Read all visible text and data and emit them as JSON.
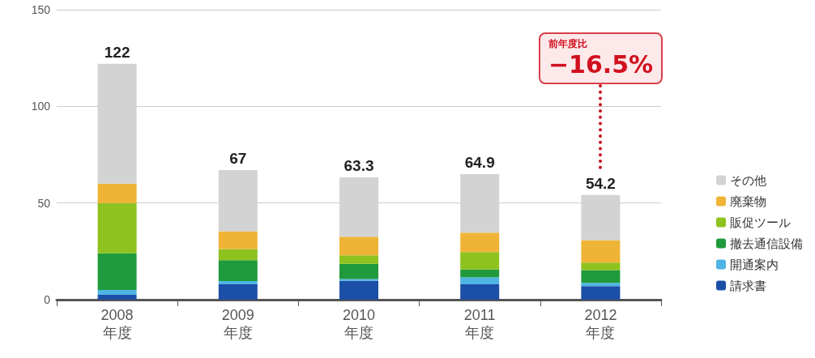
{
  "chart_data": {
    "type": "bar",
    "stacked": true,
    "categories": [
      "2008\n年度",
      "2009\n年度",
      "2010\n年度",
      "2011\n年度",
      "2012\n年度"
    ],
    "series": [
      {
        "name": "請求書",
        "color": "#1c4fa6",
        "values": [
          2.5,
          8,
          9.7,
          8,
          7
        ]
      },
      {
        "name": "開通案内",
        "color": "#4fb4e4",
        "values": [
          2.5,
          1.6,
          1,
          3.5,
          1.7
        ]
      },
      {
        "name": "撤去通信設備",
        "color": "#1f9a3c",
        "values": [
          19,
          10.8,
          7.8,
          4.1,
          6.6
        ]
      },
      {
        "name": "販促ツール",
        "color": "#8dc21f",
        "values": [
          26,
          5.8,
          4.4,
          9,
          3.9
        ]
      },
      {
        "name": "廃棄物",
        "color": "#efb436",
        "values": [
          10,
          9.2,
          9.7,
          10.1,
          11.6
        ]
      },
      {
        "name": "その他",
        "color": "#d3d3d3",
        "values": [
          62,
          31.6,
          30.7,
          30.2,
          23.4
        ]
      }
    ],
    "totals": [
      "122",
      "67",
      "63.3",
      "64.9",
      "54.2"
    ],
    "ylim": [
      0,
      150
    ],
    "yticks": [
      0,
      50,
      100,
      150
    ],
    "grid": "y",
    "legend": "right",
    "annotations": [
      "前年度比",
      "−16.5%"
    ]
  }
}
